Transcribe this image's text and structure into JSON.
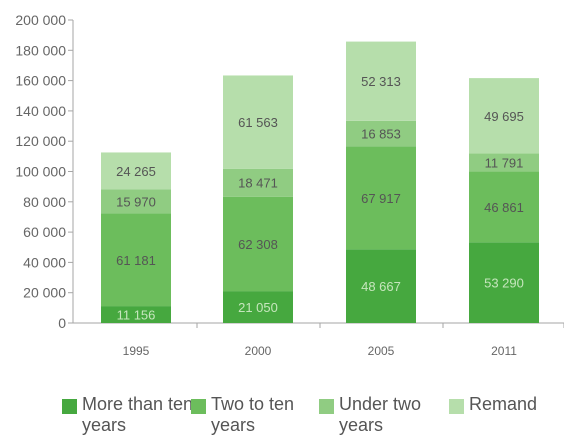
{
  "chart_data": {
    "type": "bar",
    "stacked": true,
    "categories": [
      "1995",
      "2000",
      "2005",
      "2011"
    ],
    "series": [
      {
        "name": "More than ten years",
        "values": [
          11156,
          21050,
          48667,
          53290
        ],
        "value_labels": [
          "11 156",
          "21 050",
          "48 667",
          "53 290"
        ],
        "color": "#46a83f"
      },
      {
        "name": "Two to ten years",
        "values": [
          61181,
          62308,
          67917,
          46861
        ],
        "value_labels": [
          "61 181",
          "62 308",
          "67 917",
          "46 861"
        ],
        "color": "#6cbd5c"
      },
      {
        "name": "Under two years",
        "values": [
          15970,
          18471,
          16853,
          11791
        ],
        "value_labels": [
          "15 970",
          "18 471",
          "16 853",
          "11 791"
        ],
        "color": "#90cc82"
      },
      {
        "name": "Remand",
        "values": [
          24265,
          61563,
          52313,
          49695
        ],
        "value_labels": [
          "24 265",
          "61 563",
          "52 313",
          "49 695"
        ],
        "color": "#b6deab"
      }
    ],
    "ylim": [
      0,
      200000
    ],
    "yticks": [
      0,
      20000,
      40000,
      60000,
      80000,
      100000,
      120000,
      140000,
      160000,
      180000,
      200000
    ],
    "ytick_labels": [
      "0",
      "20 000",
      "40 000",
      "60 000",
      "80 000",
      "100 000",
      "120 000",
      "140 000",
      "160 000",
      "180 000",
      "200 000"
    ],
    "grid": false,
    "legend_position": "bottom",
    "title": "",
    "xlabel": "",
    "ylabel": ""
  },
  "legend": [
    {
      "label": "More than ten years",
      "color": "#46a83f"
    },
    {
      "label": "Two to ten years",
      "color": "#6cbd5c"
    },
    {
      "label": "Under two years",
      "color": "#90cc82"
    },
    {
      "label": "Remand",
      "color": "#b6deab"
    }
  ]
}
